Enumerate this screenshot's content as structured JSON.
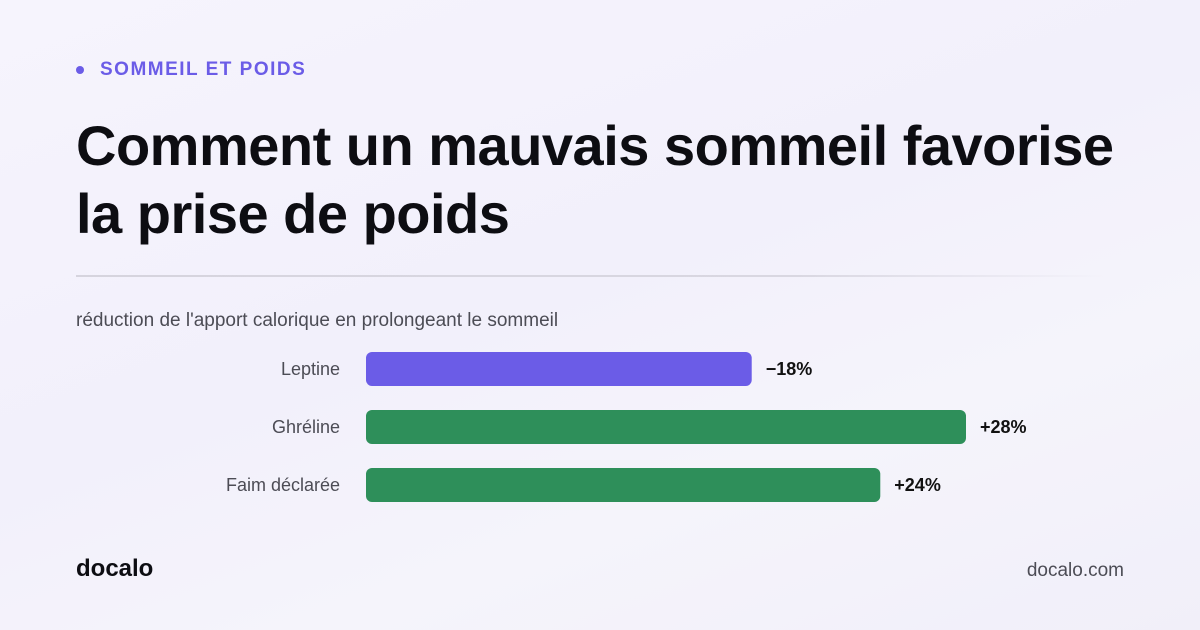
{
  "kicker": "SOMMEIL ET POIDS",
  "title": "Comment un mauvais sommeil favorise la prise de poids",
  "subtitle": "réduction de l'apport calorique en prolongeant le sommeil",
  "brand": "docalo",
  "site": "docalo.com",
  "colors": {
    "accent": "#6b5ce7",
    "increase": "#2e8f5a",
    "decrease": "#6b5ce7",
    "text": "#111111",
    "muted": "#4c4c55"
  },
  "chart_data": {
    "type": "bar",
    "orientation": "horizontal",
    "categories": [
      "Leptine",
      "Ghréline",
      "Faim déclarée"
    ],
    "values": [
      -18,
      28,
      24
    ],
    "value_labels": [
      "−18%",
      "+28%",
      "+24%"
    ],
    "bar_colors": [
      "#6b5ce7",
      "#2e8f5a",
      "#2e8f5a"
    ],
    "unit": "%",
    "title": "",
    "xlabel": "",
    "ylabel": "",
    "grid": false
  }
}
